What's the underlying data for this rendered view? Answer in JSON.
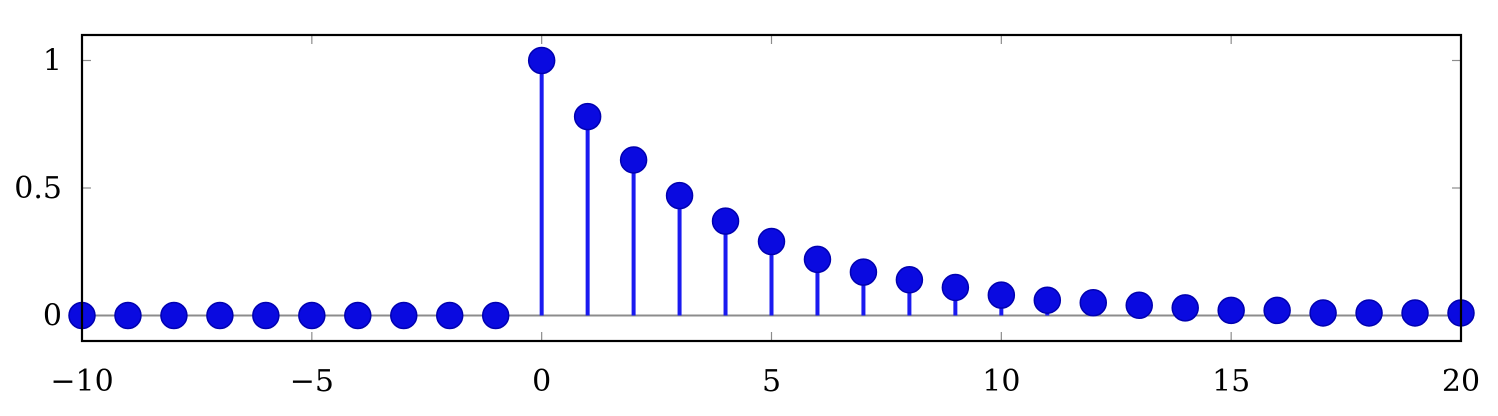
{
  "chart_data": {
    "type": "stem",
    "title": "",
    "xlabel": "",
    "ylabel": "",
    "xlim": [
      -10,
      20
    ],
    "ylim": [
      -0.1,
      1.1
    ],
    "x_ticks": [
      -10,
      -5,
      0,
      5,
      10,
      15,
      20
    ],
    "x_tick_labels": [
      "−10",
      "−5",
      "0",
      "5",
      "10",
      "15",
      "20"
    ],
    "y_ticks": [
      0,
      0.5,
      1
    ],
    "y_tick_labels": [
      "0",
      "0.5",
      "1"
    ],
    "grid": false,
    "colors": {
      "stem": "#1a1af0",
      "marker": "#0a0ae0",
      "baseline": "#8c8c8c",
      "frame": "#000000"
    },
    "series": [
      {
        "x": [
          -10,
          -9,
          -8,
          -7,
          -6,
          -5,
          -4,
          -3,
          -2,
          -1,
          0,
          1,
          2,
          3,
          4,
          5,
          6,
          7,
          8,
          9,
          10,
          11,
          12,
          13,
          14,
          15,
          16,
          17,
          18,
          19,
          20
        ],
        "y": [
          0,
          0,
          0,
          0,
          0,
          0,
          0,
          0,
          0,
          0,
          1.0,
          0.78,
          0.61,
          0.47,
          0.37,
          0.29,
          0.22,
          0.17,
          0.14,
          0.11,
          0.08,
          0.06,
          0.05,
          0.04,
          0.03,
          0.02,
          0.02,
          0.01,
          0.01,
          0.01,
          0.01
        ]
      }
    ]
  }
}
